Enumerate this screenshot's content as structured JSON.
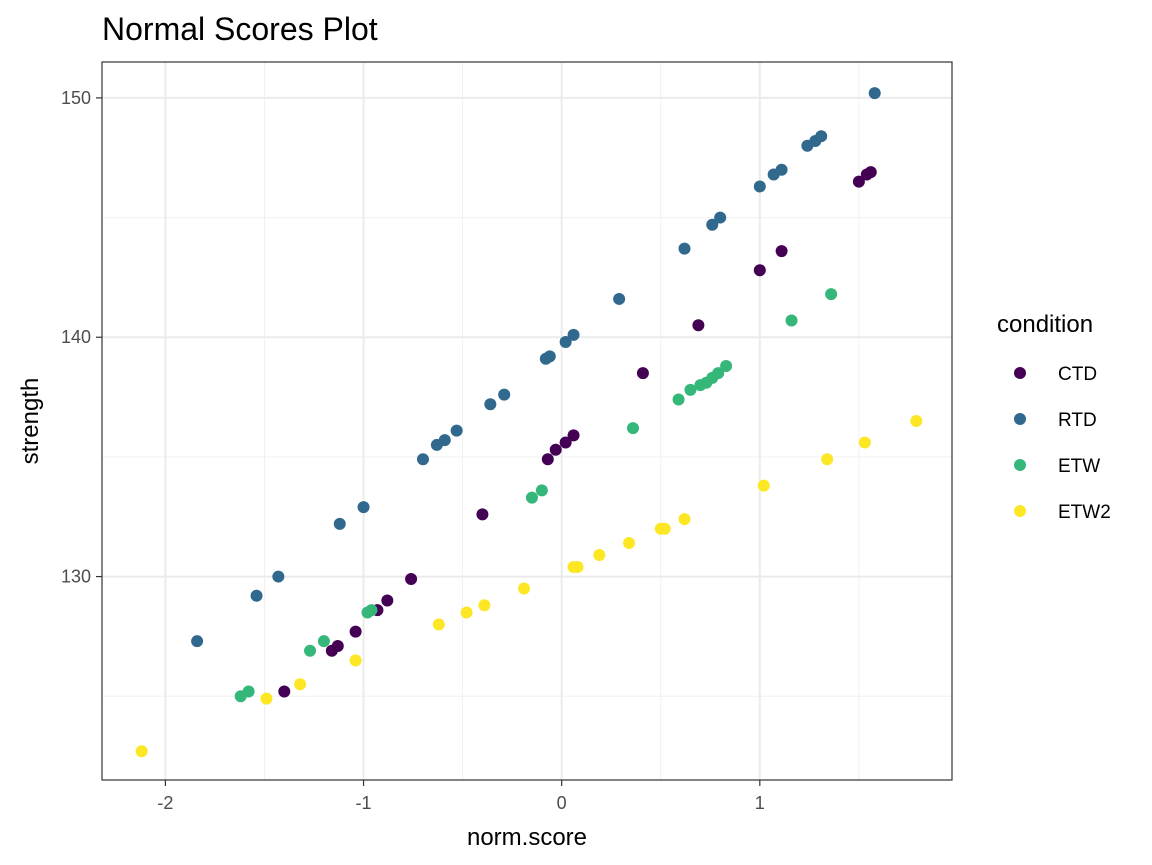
{
  "chart_data": {
    "type": "scatter",
    "title": "Normal Scores Plot",
    "xlabel": "norm.score",
    "ylabel": "strength",
    "xlim": [
      -2.32,
      1.97
    ],
    "ylim": [
      121.5,
      151.5
    ],
    "xticks": [
      -2,
      -1,
      0,
      1
    ],
    "xtick_labels": [
      "-2",
      "-1",
      "0",
      "1"
    ],
    "yticks": [
      130,
      140,
      150
    ],
    "ytick_labels": [
      "130",
      "140",
      "150"
    ],
    "grid": true,
    "legend": {
      "title": "condition",
      "position": "right"
    },
    "series": [
      {
        "name": "CTD",
        "color": "#440154",
        "points": [
          [
            -1.4,
            125.2
          ],
          [
            -1.16,
            126.9
          ],
          [
            -1.13,
            127.1
          ],
          [
            -1.04,
            127.7
          ],
          [
            -0.93,
            128.6
          ],
          [
            -0.88,
            129.0
          ],
          [
            -0.76,
            129.9
          ],
          [
            -0.4,
            132.6
          ],
          [
            -0.07,
            134.9
          ],
          [
            -0.03,
            135.3
          ],
          [
            0.02,
            135.6
          ],
          [
            0.06,
            135.9
          ],
          [
            0.41,
            138.5
          ],
          [
            0.69,
            140.5
          ],
          [
            1.0,
            142.8
          ],
          [
            1.11,
            143.6
          ],
          [
            1.5,
            146.5
          ],
          [
            1.54,
            146.8
          ],
          [
            1.56,
            146.9
          ]
        ]
      },
      {
        "name": "RTD",
        "color": "#31688e",
        "points": [
          [
            -1.84,
            127.3
          ],
          [
            -1.54,
            129.2
          ],
          [
            -1.43,
            130.0
          ],
          [
            -1.12,
            132.2
          ],
          [
            -1.0,
            132.9
          ],
          [
            -0.7,
            134.9
          ],
          [
            -0.63,
            135.5
          ],
          [
            -0.59,
            135.7
          ],
          [
            -0.53,
            136.1
          ],
          [
            -0.36,
            137.2
          ],
          [
            -0.29,
            137.6
          ],
          [
            -0.08,
            139.1
          ],
          [
            -0.06,
            139.2
          ],
          [
            0.02,
            139.8
          ],
          [
            0.06,
            140.1
          ],
          [
            0.29,
            141.6
          ],
          [
            0.62,
            143.7
          ],
          [
            0.76,
            144.7
          ],
          [
            0.8,
            145.0
          ],
          [
            1.0,
            146.3
          ],
          [
            1.07,
            146.8
          ],
          [
            1.11,
            147.0
          ],
          [
            1.24,
            148.0
          ],
          [
            1.28,
            148.2
          ],
          [
            1.31,
            148.4
          ],
          [
            1.58,
            150.2
          ]
        ]
      },
      {
        "name": "ETW",
        "color": "#35b779",
        "points": [
          [
            -1.62,
            125.0
          ],
          [
            -1.58,
            125.2
          ],
          [
            -1.27,
            126.9
          ],
          [
            -1.2,
            127.3
          ],
          [
            -0.98,
            128.5
          ],
          [
            -0.96,
            128.6
          ],
          [
            -0.15,
            133.3
          ],
          [
            -0.1,
            133.6
          ],
          [
            0.36,
            136.2
          ],
          [
            0.59,
            137.4
          ],
          [
            0.65,
            137.8
          ],
          [
            0.7,
            138.0
          ],
          [
            0.73,
            138.1
          ],
          [
            0.76,
            138.3
          ],
          [
            0.79,
            138.5
          ],
          [
            0.83,
            138.8
          ],
          [
            1.16,
            140.7
          ],
          [
            1.36,
            141.8
          ]
        ]
      },
      {
        "name": "ETW2",
        "color": "#fde725",
        "points": [
          [
            -2.12,
            122.7
          ],
          [
            -1.49,
            124.9
          ],
          [
            -1.32,
            125.5
          ],
          [
            -1.04,
            126.5
          ],
          [
            -0.62,
            128.0
          ],
          [
            -0.48,
            128.5
          ],
          [
            -0.39,
            128.8
          ],
          [
            -0.19,
            129.5
          ],
          [
            0.06,
            130.4
          ],
          [
            0.08,
            130.4
          ],
          [
            0.19,
            130.9
          ],
          [
            0.34,
            131.4
          ],
          [
            0.5,
            132.0
          ],
          [
            0.52,
            132.0
          ],
          [
            0.62,
            132.4
          ],
          [
            1.02,
            133.8
          ],
          [
            1.34,
            134.9
          ],
          [
            1.53,
            135.6
          ],
          [
            1.79,
            136.5
          ]
        ]
      }
    ]
  }
}
